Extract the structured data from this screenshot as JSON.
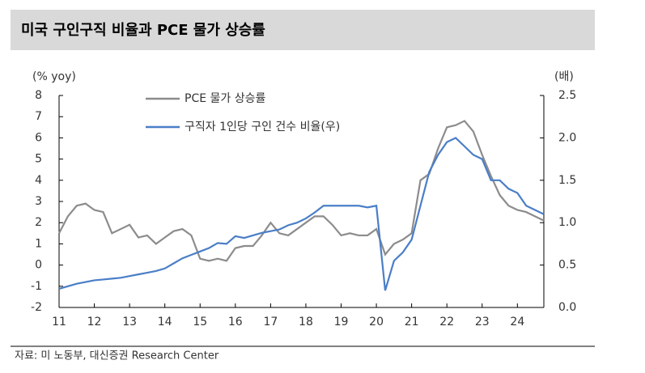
{
  "chart_data": {
    "type": "line",
    "title": "미국 구인구직 비율과 PCE 물가 상승률",
    "y_label": "(% yoy)",
    "y2_label": "(배)",
    "source": "자료: 미 노동부, 대신증권 Research Center",
    "x": [
      11.0,
      11.25,
      11.5,
      11.75,
      12.0,
      12.25,
      12.5,
      12.75,
      13.0,
      13.25,
      13.5,
      13.75,
      14.0,
      14.25,
      14.5,
      14.75,
      15.0,
      15.25,
      15.5,
      15.75,
      16.0,
      16.25,
      16.5,
      16.75,
      17.0,
      17.25,
      17.5,
      17.75,
      18.0,
      18.25,
      18.5,
      18.75,
      19.0,
      19.25,
      19.5,
      19.75,
      20.0,
      20.25,
      20.5,
      20.75,
      21.0,
      21.25,
      21.5,
      21.75,
      22.0,
      22.25,
      22.5,
      22.75,
      23.0,
      23.25,
      23.5,
      23.75,
      24.0,
      24.25,
      24.5,
      24.75
    ],
    "series": [
      {
        "name": "PCE 물가 상승률",
        "color": "#8c8c8c",
        "values": [
          1.5,
          2.3,
          2.8,
          2.9,
          2.6,
          2.5,
          1.5,
          1.7,
          1.9,
          1.3,
          1.4,
          1.0,
          1.3,
          1.6,
          1.7,
          1.4,
          0.3,
          0.2,
          0.3,
          0.2,
          0.8,
          0.9,
          0.9,
          1.4,
          2.0,
          1.5,
          1.4,
          1.7,
          2.0,
          2.3,
          2.3,
          1.9,
          1.4,
          1.5,
          1.4,
          1.4,
          1.7,
          0.5,
          1.0,
          1.2,
          1.5,
          4.0,
          4.3,
          5.5,
          6.5,
          6.6,
          6.8,
          6.3,
          5.2,
          4.2,
          3.3,
          2.8,
          2.6,
          2.5,
          2.3,
          2.1
        ]
      },
      {
        "name": "구직자 1인당 구인 건수 비율(우)",
        "color": "#4a7ec7",
        "axis": "y2",
        "values": [
          0.22,
          0.25,
          0.28,
          0.3,
          0.32,
          0.33,
          0.34,
          0.35,
          0.37,
          0.39,
          0.41,
          0.43,
          0.46,
          0.52,
          0.58,
          0.62,
          0.66,
          0.7,
          0.76,
          0.75,
          0.84,
          0.82,
          0.85,
          0.88,
          0.9,
          0.92,
          0.97,
          1.0,
          1.05,
          1.12,
          1.2,
          1.2,
          1.2,
          1.2,
          1.2,
          1.18,
          1.2,
          0.2,
          0.55,
          0.65,
          0.8,
          1.2,
          1.6,
          1.8,
          1.95,
          2.0,
          1.9,
          1.8,
          1.75,
          1.5,
          1.5,
          1.4,
          1.35,
          1.2,
          1.15,
          1.1
        ]
      }
    ],
    "xlim": [
      11,
      24.75
    ],
    "xticks": [
      11,
      12,
      13,
      14,
      15,
      16,
      17,
      18,
      19,
      20,
      21,
      22,
      23,
      24
    ],
    "ylim": [
      -2,
      8
    ],
    "yticks": [
      -2,
      -1,
      0,
      1,
      2,
      3,
      4,
      5,
      6,
      7,
      8
    ],
    "y2lim": [
      0,
      2.5
    ],
    "y2ticks": [
      {
        "value": 0,
        "label": "0.0"
      },
      {
        "value": 0.5,
        "label": "0.5"
      },
      {
        "value": 1,
        "label": "1.0"
      },
      {
        "value": 1.5,
        "label": "1.5"
      },
      {
        "value": 2,
        "label": "2.0"
      },
      {
        "value": 2.5,
        "label": "2.5"
      }
    ],
    "grid": false
  }
}
